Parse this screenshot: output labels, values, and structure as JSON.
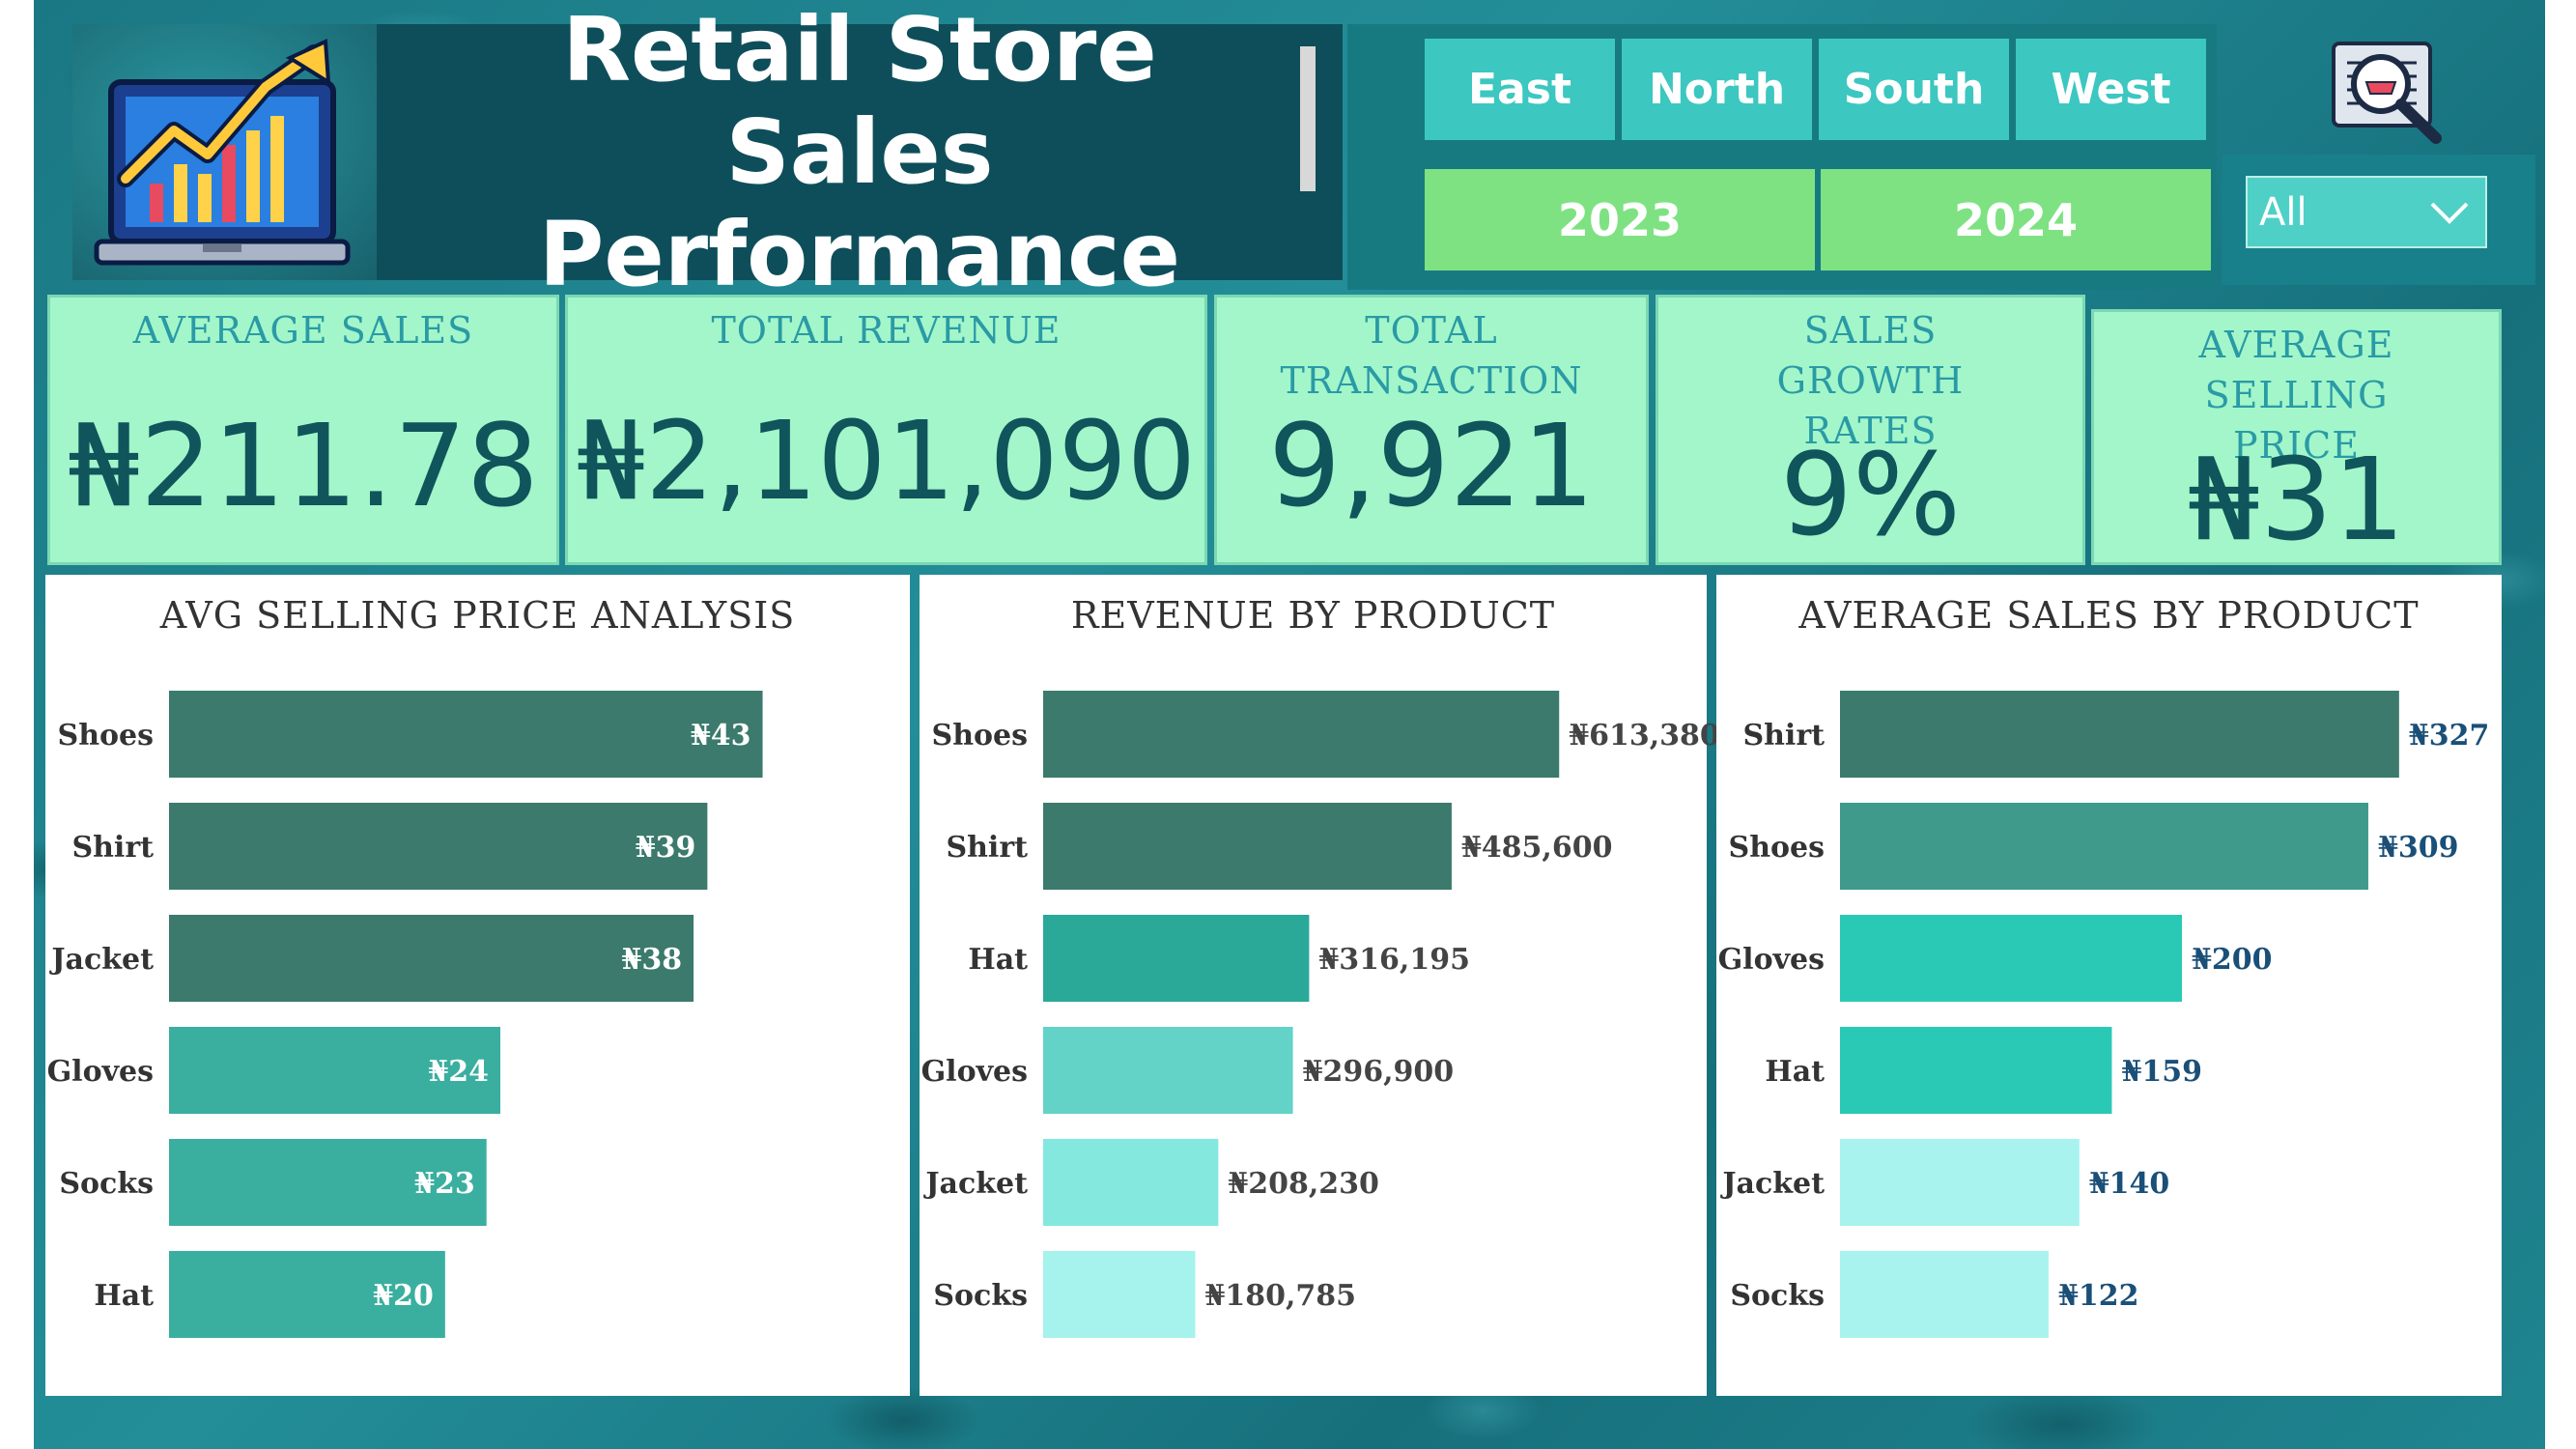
{
  "header": {
    "title": "Retail Store Sales\nPerformance",
    "logo_icon": "growth-chart-laptop-icon"
  },
  "filters": {
    "regions": [
      "East",
      "North",
      "South",
      "West"
    ],
    "years": [
      "2023",
      "2024"
    ],
    "dropdown_value": "All",
    "search_icon": "magnifier-icon"
  },
  "kpis": {
    "average_sales": {
      "label": "AVERAGE SALES",
      "value": "₦211.78"
    },
    "total_revenue": {
      "label": "TOTAL REVENUE",
      "value": "₦2,101,090"
    },
    "total_transaction": {
      "label": "TOTAL TRANSACTION",
      "value": "9,921"
    },
    "sales_growth": {
      "label": "SALES GROWTH RATES",
      "value": "9%"
    },
    "avg_selling_price": {
      "label": "AVERAGE SELLING PRICE",
      "value": "₦31"
    }
  },
  "colors": {
    "background": "#1c7f8a",
    "kpi_card": "#a2f6c9",
    "region_button": "#3cc7c0",
    "year_button": "#7ee283",
    "title_box": "#0e4e5a"
  },
  "chart_data": [
    {
      "type": "bar",
      "orientation": "horizontal",
      "title": "AVG SELLING PRICE ANALYSIS",
      "categories": [
        "Shoes",
        "Shirt",
        "Jacket",
        "Gloves",
        "Socks",
        "Hat"
      ],
      "values": [
        43,
        39,
        38,
        24,
        23,
        20
      ],
      "data_labels": [
        "₦43",
        "₦39",
        "₦38",
        "₦24",
        "₦23",
        "₦20"
      ],
      "colors": [
        "#3b7a6c",
        "#3b7a6c",
        "#3b7a6c",
        "#3aaf9f",
        "#3aaf9f",
        "#3aaf9f"
      ],
      "label_position": "inside-end",
      "xlim": [
        0,
        48
      ]
    },
    {
      "type": "bar",
      "orientation": "horizontal",
      "title": "REVENUE BY PRODUCT",
      "categories": [
        "Shoes",
        "Shirt",
        "Hat",
        "Gloves",
        "Jacket",
        "Socks"
      ],
      "values": [
        613380,
        485600,
        316195,
        296900,
        208230,
        180785
      ],
      "data_labels": [
        "₦613,380",
        "₦485,600",
        "₦316,195",
        "₦296,900",
        "₦208,230",
        "₦180,785"
      ],
      "colors": [
        "#3b7a6c",
        "#3b7a6c",
        "#2aa898",
        "#63d3c8",
        "#84e8df",
        "#a6f2ec"
      ],
      "label_position": "outside-end",
      "xlim": [
        0,
        620000
      ]
    },
    {
      "type": "bar",
      "orientation": "horizontal",
      "title": "AVERAGE SALES BY PRODUCT",
      "categories": [
        "Shirt",
        "Shoes",
        "Gloves",
        "Hat",
        "Jacket",
        "Socks"
      ],
      "values": [
        327,
        309,
        200,
        159,
        140,
        122
      ],
      "data_labels": [
        "₦327",
        "₦309",
        "₦200",
        "₦159",
        "₦140",
        "₦122"
      ],
      "colors": [
        "#3b7a6c",
        "#3f9a8b",
        "#2ac9b6",
        "#2ac9b6",
        "#a9f3ee",
        "#a9f3ee"
      ],
      "label_position": "outside-end",
      "label_color": "#1a4f78",
      "xlim": [
        0,
        335
      ]
    }
  ]
}
